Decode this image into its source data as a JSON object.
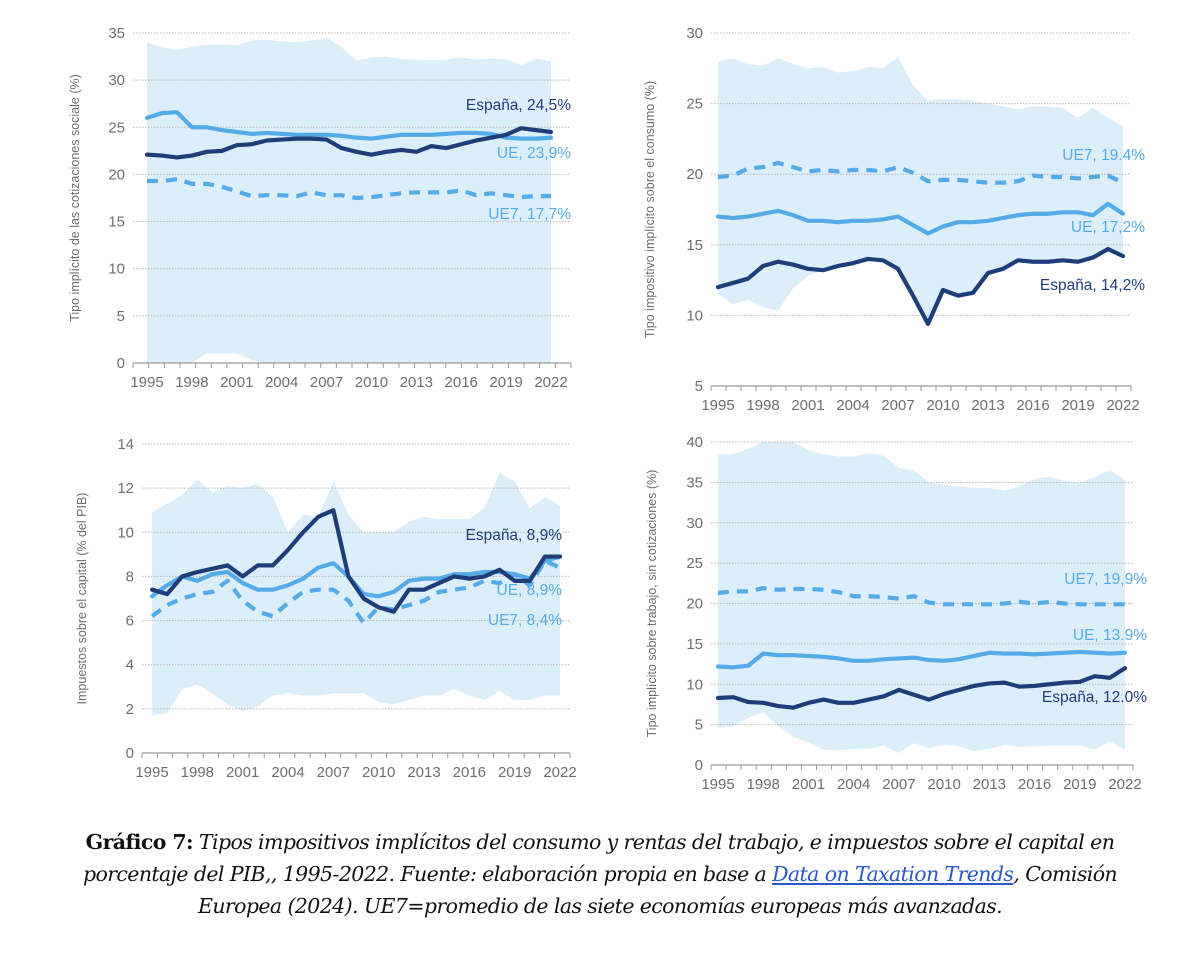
{
  "chart_data": [
    {
      "type": "line",
      "ylabel": "Tipo implícito de las cotizaciones sociale (%)",
      "ylim": [
        0,
        35
      ],
      "yticks": [
        0,
        5,
        10,
        15,
        20,
        25,
        30,
        35
      ],
      "x": [
        1995,
        1996,
        1997,
        1998,
        1999,
        2000,
        2001,
        2002,
        2003,
        2004,
        2005,
        2006,
        2007,
        2008,
        2009,
        2010,
        2011,
        2012,
        2013,
        2014,
        2015,
        2016,
        2017,
        2018,
        2019,
        2020,
        2021,
        2022
      ],
      "xticks": [
        1995,
        1998,
        2001,
        2004,
        2007,
        2010,
        2013,
        2016,
        2019,
        2022
      ],
      "grid": true,
      "band": {
        "max": [
          34,
          33.5,
          33.2,
          33.6,
          33.8,
          33.8,
          33.7,
          34.2,
          34.3,
          34.1,
          34.0,
          34.2,
          34.5,
          33.5,
          32.1,
          32.4,
          32.5,
          32.2,
          32.2,
          32.1,
          32.2,
          32.4,
          32.2,
          32.3,
          32.2,
          31.6,
          32.3,
          32.0
        ],
        "min": [
          0,
          0,
          0,
          0,
          1,
          1,
          1,
          0.3,
          0,
          0,
          0,
          0,
          0,
          0,
          0,
          0,
          0,
          0,
          0,
          0,
          0,
          0,
          0,
          0,
          0,
          0,
          0,
          0
        ]
      },
      "series": [
        {
          "name": "España",
          "label": "España, 24,5%",
          "style": "solid",
          "color": "#1f3e79",
          "values": [
            22.1,
            22.0,
            21.8,
            22.0,
            22.4,
            22.5,
            23.1,
            23.2,
            23.6,
            23.7,
            23.8,
            23.8,
            23.7,
            22.8,
            22.4,
            22.1,
            22.4,
            22.6,
            22.4,
            23.0,
            22.8,
            23.2,
            23.6,
            23.9,
            24.2,
            24.9,
            24.7,
            24.5
          ]
        },
        {
          "name": "UE",
          "label": "UE, 23,9%",
          "style": "solid",
          "color": "#55abe7",
          "values": [
            26.0,
            26.5,
            26.6,
            25.0,
            25.0,
            24.7,
            24.5,
            24.3,
            24.4,
            24.3,
            24.2,
            24.2,
            24.2,
            24.1,
            23.9,
            23.8,
            24.0,
            24.2,
            24.2,
            24.2,
            24.3,
            24.4,
            24.4,
            24.3,
            23.9,
            23.8,
            23.8,
            23.9
          ]
        },
        {
          "name": "UE7",
          "label": "UE7, 17,7%",
          "style": "dashed",
          "color": "#55abe7",
          "values": [
            19.3,
            19.3,
            19.5,
            19.0,
            19.0,
            18.7,
            18.2,
            17.7,
            17.8,
            17.8,
            17.7,
            18.1,
            17.8,
            17.8,
            17.5,
            17.6,
            17.8,
            18.0,
            18.1,
            18.1,
            18.1,
            18.3,
            17.8,
            18.0,
            17.8,
            17.6,
            17.7,
            17.7
          ]
        }
      ]
    },
    {
      "type": "line",
      "ylabel": "Tipo impositivo implícito sobre el consumo (%)",
      "ylim": [
        5,
        30
      ],
      "yticks": [
        5,
        10,
        15,
        20,
        25,
        30
      ],
      "x": [
        1995,
        1996,
        1997,
        1998,
        1999,
        2000,
        2001,
        2002,
        2003,
        2004,
        2005,
        2006,
        2007,
        2008,
        2009,
        2010,
        2011,
        2012,
        2013,
        2014,
        2015,
        2016,
        2017,
        2018,
        2019,
        2020,
        2021,
        2022
      ],
      "xticks": [
        1995,
        1998,
        2001,
        2004,
        2007,
        2010,
        2013,
        2016,
        2019,
        2022
      ],
      "grid": true,
      "band": {
        "max": [
          28.0,
          28.2,
          27.8,
          27.7,
          28.2,
          27.8,
          27.5,
          27.6,
          27.2,
          27.3,
          27.6,
          27.5,
          28.3,
          26.3,
          25.2,
          25.3,
          25.3,
          25.2,
          25.0,
          24.8,
          24.6,
          24.8,
          24.8,
          24.7,
          24.0,
          24.7,
          24.0,
          23.4
        ],
        "min": [
          11.5,
          10.8,
          11.1,
          10.6,
          10.3,
          11.9,
          12.8,
          13.2,
          13.5,
          13.7,
          14.0,
          13.9,
          13.3,
          11.4,
          9.4,
          11.8,
          11.4,
          11.6,
          13.0,
          13.3,
          13.9,
          13.8,
          13.8,
          13.9,
          13.8,
          14.1,
          14.7,
          14.2
        ]
      },
      "series": [
        {
          "name": "España",
          "label": "España, 14,2%",
          "style": "solid",
          "color": "#1f3e79",
          "values": [
            12.0,
            12.3,
            12.6,
            13.5,
            13.8,
            13.6,
            13.3,
            13.2,
            13.5,
            13.7,
            14.0,
            13.9,
            13.3,
            11.4,
            9.4,
            11.8,
            11.4,
            11.6,
            13.0,
            13.3,
            13.9,
            13.8,
            13.8,
            13.9,
            13.8,
            14.1,
            14.7,
            14.2
          ]
        },
        {
          "name": "UE",
          "label": "UE, 17,2%",
          "style": "solid",
          "color": "#55abe7",
          "values": [
            17.0,
            16.9,
            17.0,
            17.2,
            17.4,
            17.1,
            16.7,
            16.7,
            16.6,
            16.7,
            16.7,
            16.8,
            17.0,
            16.4,
            15.8,
            16.3,
            16.6,
            16.6,
            16.7,
            16.9,
            17.1,
            17.2,
            17.2,
            17.3,
            17.3,
            17.1,
            17.9,
            17.2
          ]
        },
        {
          "name": "UE7",
          "label": "UE7, 19.4%",
          "style": "dashed",
          "color": "#55abe7",
          "values": [
            19.8,
            19.9,
            20.4,
            20.5,
            20.8,
            20.5,
            20.2,
            20.3,
            20.2,
            20.3,
            20.3,
            20.2,
            20.5,
            20.1,
            19.5,
            19.6,
            19.6,
            19.5,
            19.4,
            19.4,
            19.5,
            19.9,
            19.8,
            19.8,
            19.7,
            19.8,
            19.9,
            19.4
          ]
        }
      ]
    },
    {
      "type": "line",
      "ylabel": "Impuestos sobre el capital (% del PIB)",
      "ylim": [
        0,
        14
      ],
      "yticks": [
        0,
        2,
        4,
        6,
        8,
        10,
        12,
        14
      ],
      "x": [
        1995,
        1996,
        1997,
        1998,
        1999,
        2000,
        2001,
        2002,
        2003,
        2004,
        2005,
        2006,
        2007,
        2008,
        2009,
        2010,
        2011,
        2012,
        2013,
        2014,
        2015,
        2016,
        2017,
        2018,
        2019,
        2020,
        2021,
        2022
      ],
      "xticks": [
        1995,
        1998,
        2001,
        2004,
        2007,
        2010,
        2013,
        2016,
        2019,
        2022
      ],
      "grid": true,
      "band": {
        "max": [
          10.9,
          11.3,
          11.7,
          12.4,
          11.8,
          12.1,
          12.0,
          12.2,
          11.6,
          10.0,
          10.8,
          10.7,
          12.3,
          10.8,
          10.0,
          10.0,
          10.0,
          10.5,
          10.7,
          10.6,
          10.6,
          10.6,
          11.1,
          12.7,
          12.3,
          11.1,
          11.6,
          11.2
        ],
        "min": [
          1.7,
          1.8,
          2.9,
          3.1,
          2.7,
          2.2,
          1.9,
          2.1,
          2.6,
          2.7,
          2.6,
          2.6,
          2.7,
          2.7,
          2.7,
          2.3,
          2.2,
          2.4,
          2.6,
          2.6,
          2.9,
          2.6,
          2.4,
          2.8,
          2.4,
          2.4,
          2.6,
          2.6
        ]
      },
      "series": [
        {
          "name": "España",
          "label": "España, 8,9%",
          "style": "solid",
          "color": "#1f3e79",
          "values": [
            7.4,
            7.2,
            8.0,
            8.2,
            8.35,
            8.5,
            8.0,
            8.5,
            8.5,
            9.2,
            10.0,
            10.7,
            11.0,
            8.0,
            7.0,
            6.6,
            6.4,
            7.4,
            7.4,
            7.7,
            8.0,
            7.9,
            8.0,
            8.3,
            7.8,
            7.8,
            8.9,
            8.9
          ]
        },
        {
          "name": "UE",
          "label": "UE, 8,9%",
          "style": "solid",
          "color": "#55abe7",
          "values": [
            7.1,
            7.6,
            8.0,
            7.8,
            8.1,
            8.2,
            7.7,
            7.4,
            7.4,
            7.6,
            7.9,
            8.4,
            8.6,
            8.0,
            7.2,
            7.1,
            7.3,
            7.8,
            7.9,
            7.9,
            8.1,
            8.1,
            8.2,
            8.2,
            8.1,
            7.9,
            8.7,
            8.9
          ]
        },
        {
          "name": "UE7",
          "label": "UE7, 8,4%",
          "style": "dashed",
          "color": "#55abe7",
          "values": [
            6.2,
            6.7,
            7.0,
            7.2,
            7.3,
            7.8,
            6.9,
            6.4,
            6.2,
            6.8,
            7.3,
            7.4,
            7.4,
            6.9,
            5.9,
            6.6,
            6.5,
            6.7,
            6.9,
            7.3,
            7.4,
            7.5,
            7.8,
            7.7,
            8.1,
            7.6,
            8.7,
            8.4
          ]
        }
      ]
    },
    {
      "type": "line",
      "ylabel": "Tipo implícito sobre trabajo, sin cotizaciones (%)",
      "ylim": [
        0,
        40
      ],
      "yticks": [
        0,
        5,
        10,
        15,
        20,
        25,
        30,
        35,
        40
      ],
      "x": [
        1995,
        1996,
        1997,
        1998,
        1999,
        2000,
        2001,
        2002,
        2003,
        2004,
        2005,
        2006,
        2007,
        2008,
        2009,
        2010,
        2011,
        2012,
        2013,
        2014,
        2015,
        2016,
        2017,
        2018,
        2019,
        2020,
        2021,
        2022
      ],
      "xticks": [
        1995,
        1998,
        2001,
        2004,
        2007,
        2010,
        2013,
        2016,
        2019,
        2022
      ],
      "grid": true,
      "band": {
        "max": [
          38.5,
          38.5,
          39.2,
          40,
          40,
          40,
          39,
          38.5,
          38.2,
          38.2,
          38.6,
          38.3,
          36.8,
          36.5,
          35,
          34.7,
          34.5,
          34.3,
          34.3,
          34.0,
          34.5,
          35.4,
          35.7,
          35.2,
          34.9,
          35.7,
          36.5,
          35.3
        ],
        "min": [
          4.6,
          4.8,
          5.8,
          6.5,
          4.8,
          3.5,
          2.8,
          1.9,
          1.8,
          2.0,
          2.0,
          2.4,
          1.5,
          2.7,
          2.1,
          2.5,
          2.3,
          1.7,
          2.0,
          2.5,
          2.2,
          2.3,
          2.4,
          2.4,
          2.4,
          1.9,
          2.9,
          1.9
        ]
      },
      "series": [
        {
          "name": "España",
          "label": "España, 12.0%",
          "style": "solid",
          "color": "#1f3e79",
          "values": [
            8.3,
            8.4,
            7.8,
            7.7,
            7.3,
            7.1,
            7.7,
            8.1,
            7.7,
            7.7,
            8.1,
            8.5,
            9.3,
            8.7,
            8.1,
            8.8,
            9.3,
            9.8,
            10.1,
            10.2,
            9.7,
            9.8,
            10.0,
            10.2,
            10.3,
            11.0,
            10.8,
            12.0
          ]
        },
        {
          "name": "UE",
          "label": "UE, 13.9%",
          "style": "solid",
          "color": "#55abe7",
          "values": [
            12.2,
            12.1,
            12.3,
            13.8,
            13.6,
            13.6,
            13.5,
            13.4,
            13.2,
            12.9,
            12.9,
            13.1,
            13.2,
            13.3,
            13.0,
            12.9,
            13.1,
            13.5,
            13.9,
            13.8,
            13.8,
            13.7,
            13.8,
            13.9,
            14.0,
            13.9,
            13.8,
            13.9
          ]
        },
        {
          "name": "UE7",
          "label": "UE7, 19,9%",
          "style": "dashed",
          "color": "#55abe7",
          "values": [
            21.3,
            21.5,
            21.5,
            21.9,
            21.7,
            21.8,
            21.8,
            21.7,
            21.4,
            20.9,
            20.9,
            20.8,
            20.6,
            20.9,
            20.1,
            19.9,
            19.9,
            19.9,
            19.9,
            20.0,
            20.2,
            20.0,
            20.2,
            20.0,
            19.9,
            19.9,
            19.9,
            19.9
          ]
        }
      ]
    }
  ],
  "colors": {
    "band": "#ddeefb",
    "espana": "#1f3e79",
    "ue": "#55abe7",
    "axis": "#9a9a9a",
    "link": "#2a57c8"
  },
  "caption": {
    "label": "Gráfico 7:",
    "text_1": " Tipos impositivos implícitos del consumo y rentas del trabajo, e impuestos sobre el capital en porcentaje del PIB,, 1995-2022. Fuente: elaboración propia en base a ",
    "link": "Data on Taxation Trends",
    "text_2": ", Comisión Europea (2024). UE7=promedio de las siete economías europeas más avanzadas."
  }
}
